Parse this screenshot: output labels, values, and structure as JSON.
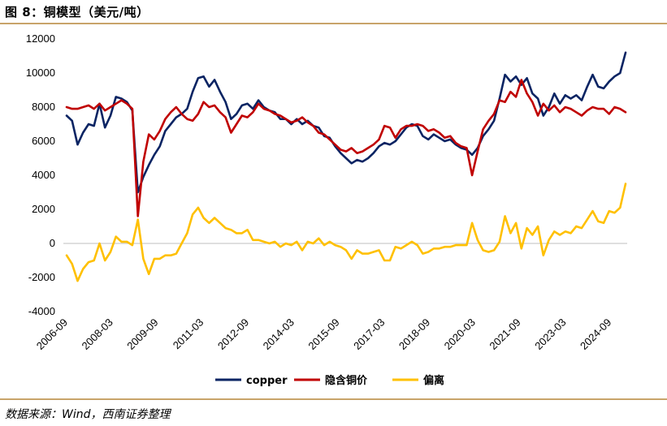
{
  "title": "图 8：铜模型（美元/吨）",
  "source": "数据来源：Wind，西南证券整理",
  "chart_data": {
    "type": "line",
    "title": "图 8：铜模型（美元/吨）",
    "xlabel": "",
    "ylabel": "",
    "ylim": [
      -4000,
      12000
    ],
    "yticks": [
      -4000,
      -2000,
      0,
      2000,
      4000,
      6000,
      8000,
      10000,
      12000
    ],
    "x_tick_labels": [
      "2006-09",
      "2008-03",
      "2009-09",
      "2011-03",
      "2012-09",
      "2014-03",
      "2015-09",
      "2017-03",
      "2018-09",
      "2020-03",
      "2021-09",
      "2023-03",
      "2024-09"
    ],
    "x_start": "2006-09",
    "x_end": "2025-05",
    "legend_position": "bottom",
    "series": [
      {
        "name": "copper",
        "color": "#0a2463",
        "values": [
          7500,
          7200,
          5800,
          6500,
          7000,
          6900,
          8200,
          6800,
          7500,
          8600,
          8500,
          8300,
          7800,
          3000,
          3900,
          4600,
          5200,
          5700,
          6600,
          7000,
          7400,
          7600,
          7900,
          8900,
          9700,
          9800,
          9200,
          9600,
          8900,
          8300,
          7300,
          7600,
          8100,
          8200,
          7900,
          8400,
          8000,
          7800,
          7700,
          7300,
          7300,
          7000,
          7300,
          7000,
          7200,
          6900,
          6800,
          6300,
          6200,
          5700,
          5300,
          5000,
          4700,
          4900,
          4800,
          5000,
          5300,
          5700,
          5900,
          5800,
          6000,
          6400,
          6800,
          7000,
          6900,
          6300,
          6100,
          6400,
          6200,
          6000,
          6100,
          5800,
          5600,
          5500,
          5200,
          5600,
          6300,
          6700,
          7200,
          8500,
          9900,
          9500,
          9800,
          9300,
          9700,
          8800,
          8500,
          7500,
          8000,
          8800,
          8200,
          8700,
          8500,
          8700,
          8400,
          9200,
          9900,
          9200,
          9100,
          9500,
          9800,
          10000,
          11200
        ],
        "bullets": []
      },
      {
        "name": "隐含铜价",
        "color": "#c00000",
        "values": [
          8000,
          7900,
          7900,
          8000,
          8100,
          7900,
          8200,
          7800,
          8000,
          8200,
          8400,
          8200,
          7900,
          1600,
          4800,
          6400,
          6100,
          6600,
          7300,
          7700,
          8000,
          7600,
          7300,
          7200,
          7600,
          8300,
          8000,
          8100,
          7700,
          7400,
          6500,
          7000,
          7500,
          7400,
          7700,
          8200,
          7900,
          7800,
          7600,
          7500,
          7300,
          7100,
          7200,
          7400,
          7100,
          6900,
          6500,
          6400,
          6100,
          5800,
          5500,
          5400,
          5600,
          5300,
          5400,
          5600,
          5800,
          6100,
          6900,
          6800,
          6200,
          6700,
          6900,
          6900,
          7000,
          6900,
          6600,
          6700,
          6500,
          6200,
          6300,
          5900,
          5700,
          5600,
          4000,
          5400,
          6700,
          7200,
          7600,
          8400,
          8300,
          8900,
          8600,
          9600,
          8800,
          8300,
          7500,
          8200,
          7800,
          8100,
          7700,
          8000,
          7900,
          7700,
          7500,
          7800,
          8000,
          7900,
          7900,
          7600,
          8000,
          7900,
          7700
        ],
        "bullets": []
      },
      {
        "name": "偏离",
        "color": "#ffc000",
        "values": [
          -700,
          -1200,
          -2200,
          -1500,
          -1100,
          -1000,
          0,
          -1000,
          -500,
          400,
          100,
          100,
          -100,
          1400,
          -900,
          -1800,
          -900,
          -900,
          -700,
          -700,
          -600,
          0,
          600,
          1700,
          2100,
          1500,
          1200,
          1500,
          1200,
          900,
          800,
          600,
          600,
          800,
          200,
          200,
          100,
          0,
          100,
          -200,
          0,
          -100,
          100,
          -400,
          100,
          0,
          300,
          -100,
          100,
          -100,
          -200,
          -400,
          -900,
          -400,
          -600,
          -600,
          -500,
          -400,
          -1000,
          -1000,
          -200,
          -300,
          -100,
          100,
          -100,
          -600,
          -500,
          -300,
          -300,
          -200,
          -200,
          -100,
          -100,
          -100,
          1200,
          200,
          -400,
          -500,
          -400,
          100,
          1600,
          600,
          1200,
          -300,
          900,
          500,
          1000,
          -700,
          200,
          700,
          500,
          700,
          600,
          1000,
          900,
          1400,
          1900,
          1300,
          1200,
          1900,
          1800,
          2100,
          3500
        ],
        "bullets": []
      }
    ]
  }
}
